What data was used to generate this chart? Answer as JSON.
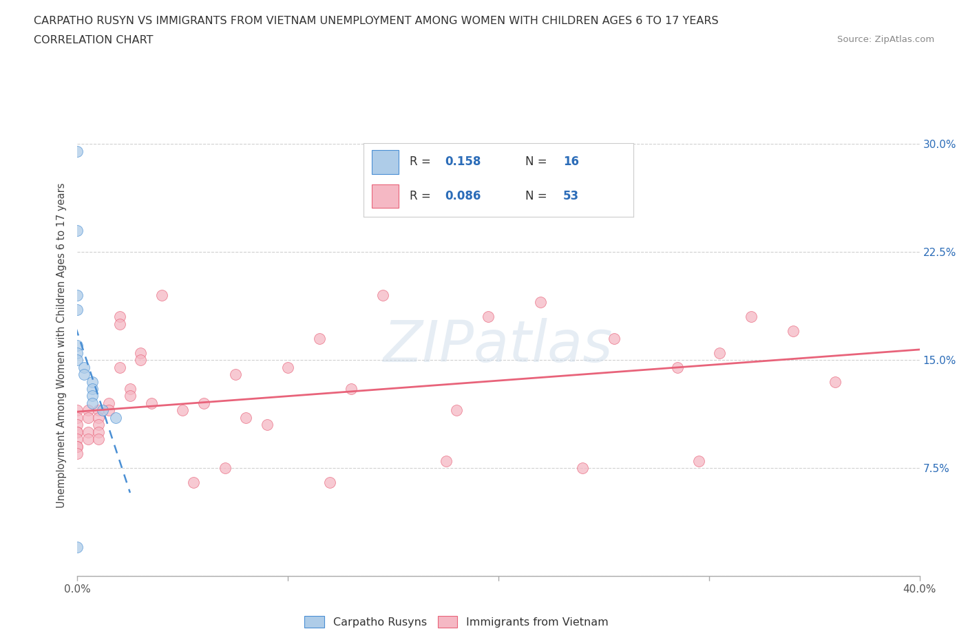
{
  "title_line1": "CARPATHO RUSYN VS IMMIGRANTS FROM VIETNAM UNEMPLOYMENT AMONG WOMEN WITH CHILDREN AGES 6 TO 17 YEARS",
  "title_line2": "CORRELATION CHART",
  "source_text": "Source: ZipAtlas.com",
  "ylabel": "Unemployment Among Women with Children Ages 6 to 17 years",
  "xlim": [
    0.0,
    0.4
  ],
  "ylim": [
    0.0,
    0.32
  ],
  "xticks": [
    0.0,
    0.1,
    0.2,
    0.3,
    0.4
  ],
  "xticklabels": [
    "0.0%",
    "",
    "",
    "",
    "40.0%"
  ],
  "yticks": [
    0.0,
    0.075,
    0.15,
    0.225,
    0.3
  ],
  "yticklabels": [
    "",
    "7.5%",
    "15.0%",
    "22.5%",
    "30.0%"
  ],
  "legend_R1": "0.158",
  "legend_N1": "16",
  "legend_R2": "0.086",
  "legend_N2": "53",
  "blue_color": "#aecce8",
  "pink_color": "#f5b8c4",
  "blue_line_color": "#4a8fd4",
  "pink_line_color": "#e8637a",
  "blue_accent": "#2b6cb8",
  "watermark_text": "ZIPatlas",
  "legend_label1": "Carpatho Rusyns",
  "legend_label2": "Immigrants from Vietnam",
  "carpatho_rusyn_x": [
    0.0,
    0.0,
    0.0,
    0.0,
    0.0,
    0.0,
    0.0,
    0.003,
    0.003,
    0.007,
    0.007,
    0.007,
    0.007,
    0.012,
    0.018,
    0.0
  ],
  "carpatho_rusyn_y": [
    0.295,
    0.24,
    0.195,
    0.185,
    0.16,
    0.155,
    0.15,
    0.145,
    0.14,
    0.135,
    0.13,
    0.125,
    0.12,
    0.115,
    0.11,
    0.02
  ],
  "vietnam_x": [
    0.0,
    0.0,
    0.0,
    0.0,
    0.0,
    0.0,
    0.0,
    0.0,
    0.0,
    0.005,
    0.005,
    0.005,
    0.005,
    0.01,
    0.01,
    0.01,
    0.01,
    0.01,
    0.015,
    0.015,
    0.02,
    0.02,
    0.02,
    0.025,
    0.025,
    0.03,
    0.03,
    0.035,
    0.04,
    0.05,
    0.055,
    0.06,
    0.07,
    0.075,
    0.08,
    0.09,
    0.1,
    0.115,
    0.12,
    0.13,
    0.145,
    0.175,
    0.18,
    0.195,
    0.22,
    0.24,
    0.255,
    0.285,
    0.295,
    0.305,
    0.32,
    0.34,
    0.36
  ],
  "vietnam_y": [
    0.115,
    0.11,
    0.105,
    0.1,
    0.1,
    0.095,
    0.09,
    0.09,
    0.085,
    0.115,
    0.11,
    0.1,
    0.095,
    0.115,
    0.11,
    0.105,
    0.1,
    0.095,
    0.12,
    0.115,
    0.18,
    0.175,
    0.145,
    0.13,
    0.125,
    0.155,
    0.15,
    0.12,
    0.195,
    0.115,
    0.065,
    0.12,
    0.075,
    0.14,
    0.11,
    0.105,
    0.145,
    0.165,
    0.065,
    0.13,
    0.195,
    0.08,
    0.115,
    0.18,
    0.19,
    0.075,
    0.165,
    0.145,
    0.08,
    0.155,
    0.18,
    0.17,
    0.135
  ]
}
